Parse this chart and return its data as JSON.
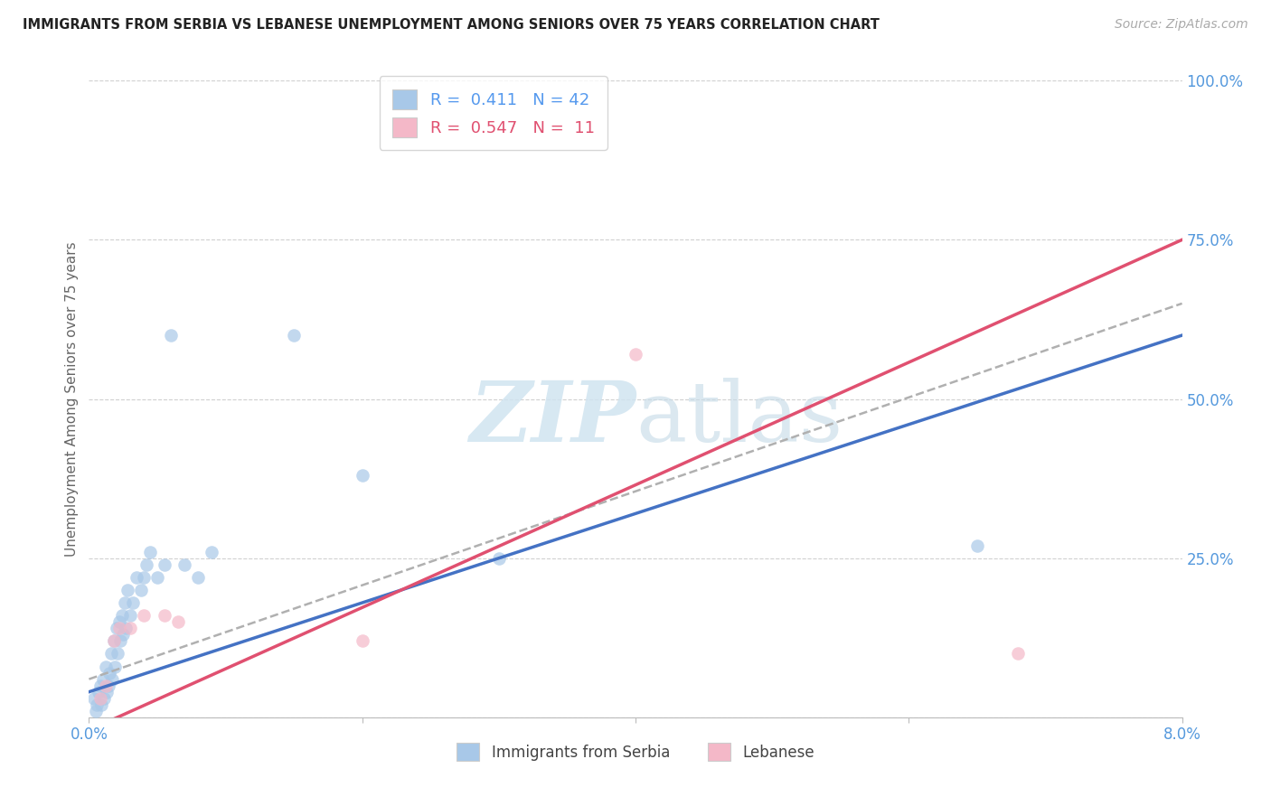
{
  "title": "IMMIGRANTS FROM SERBIA VS LEBANESE UNEMPLOYMENT AMONG SENIORS OVER 75 YEARS CORRELATION CHART",
  "source": "Source: ZipAtlas.com",
  "ylabel": "Unemployment Among Seniors over 75 years",
  "xlim": [
    0.0,
    8.0
  ],
  "ylim": [
    0.0,
    100.0
  ],
  "serbia_R": 0.411,
  "serbia_N": 42,
  "lebanese_R": 0.547,
  "lebanese_N": 11,
  "serbia_color": "#a8c8e8",
  "lebanese_color": "#f4b8c8",
  "serbia_line_color": "#4472c4",
  "lebanese_line_color": "#e05070",
  "dashed_line_color": "#b0b0b0",
  "legend_serbia_label": "Immigrants from Serbia",
  "legend_lebanese_label": "Lebanese",
  "watermark_zip": "ZIP",
  "watermark_atlas": "atlas",
  "serbia_x": [
    0.04,
    0.05,
    0.06,
    0.07,
    0.08,
    0.09,
    0.1,
    0.11,
    0.12,
    0.13,
    0.14,
    0.15,
    0.16,
    0.17,
    0.18,
    0.19,
    0.2,
    0.21,
    0.22,
    0.23,
    0.24,
    0.25,
    0.26,
    0.27,
    0.28,
    0.3,
    0.32,
    0.35,
    0.38,
    0.4,
    0.42,
    0.45,
    0.5,
    0.55,
    0.6,
    0.7,
    0.8,
    0.9,
    1.5,
    2.0,
    3.0,
    6.5
  ],
  "serbia_y": [
    3.0,
    1.0,
    2.0,
    4.0,
    5.0,
    2.0,
    6.0,
    3.0,
    8.0,
    4.0,
    5.0,
    7.0,
    10.0,
    6.0,
    12.0,
    8.0,
    14.0,
    10.0,
    15.0,
    12.0,
    16.0,
    13.0,
    18.0,
    14.0,
    20.0,
    16.0,
    18.0,
    22.0,
    20.0,
    22.0,
    24.0,
    26.0,
    22.0,
    24.0,
    60.0,
    24.0,
    22.0,
    26.0,
    60.0,
    38.0,
    25.0,
    27.0
  ],
  "lebanese_x": [
    0.08,
    0.12,
    0.18,
    0.22,
    0.3,
    0.4,
    0.55,
    0.65,
    2.0,
    4.0,
    6.8
  ],
  "lebanese_y": [
    3.0,
    5.0,
    12.0,
    14.0,
    14.0,
    16.0,
    16.0,
    15.0,
    12.0,
    57.0,
    10.0
  ],
  "serbia_line_x0": 0.0,
  "serbia_line_y0": 4.0,
  "serbia_line_x1": 8.0,
  "serbia_line_y1": 60.0,
  "lebanese_line_x0": 0.0,
  "lebanese_line_y0": -2.0,
  "lebanese_line_x1": 8.0,
  "lebanese_line_y1": 75.0,
  "dashed_line_x0": 0.0,
  "dashed_line_y0": 6.0,
  "dashed_line_x1": 8.0,
  "dashed_line_y1": 65.0
}
